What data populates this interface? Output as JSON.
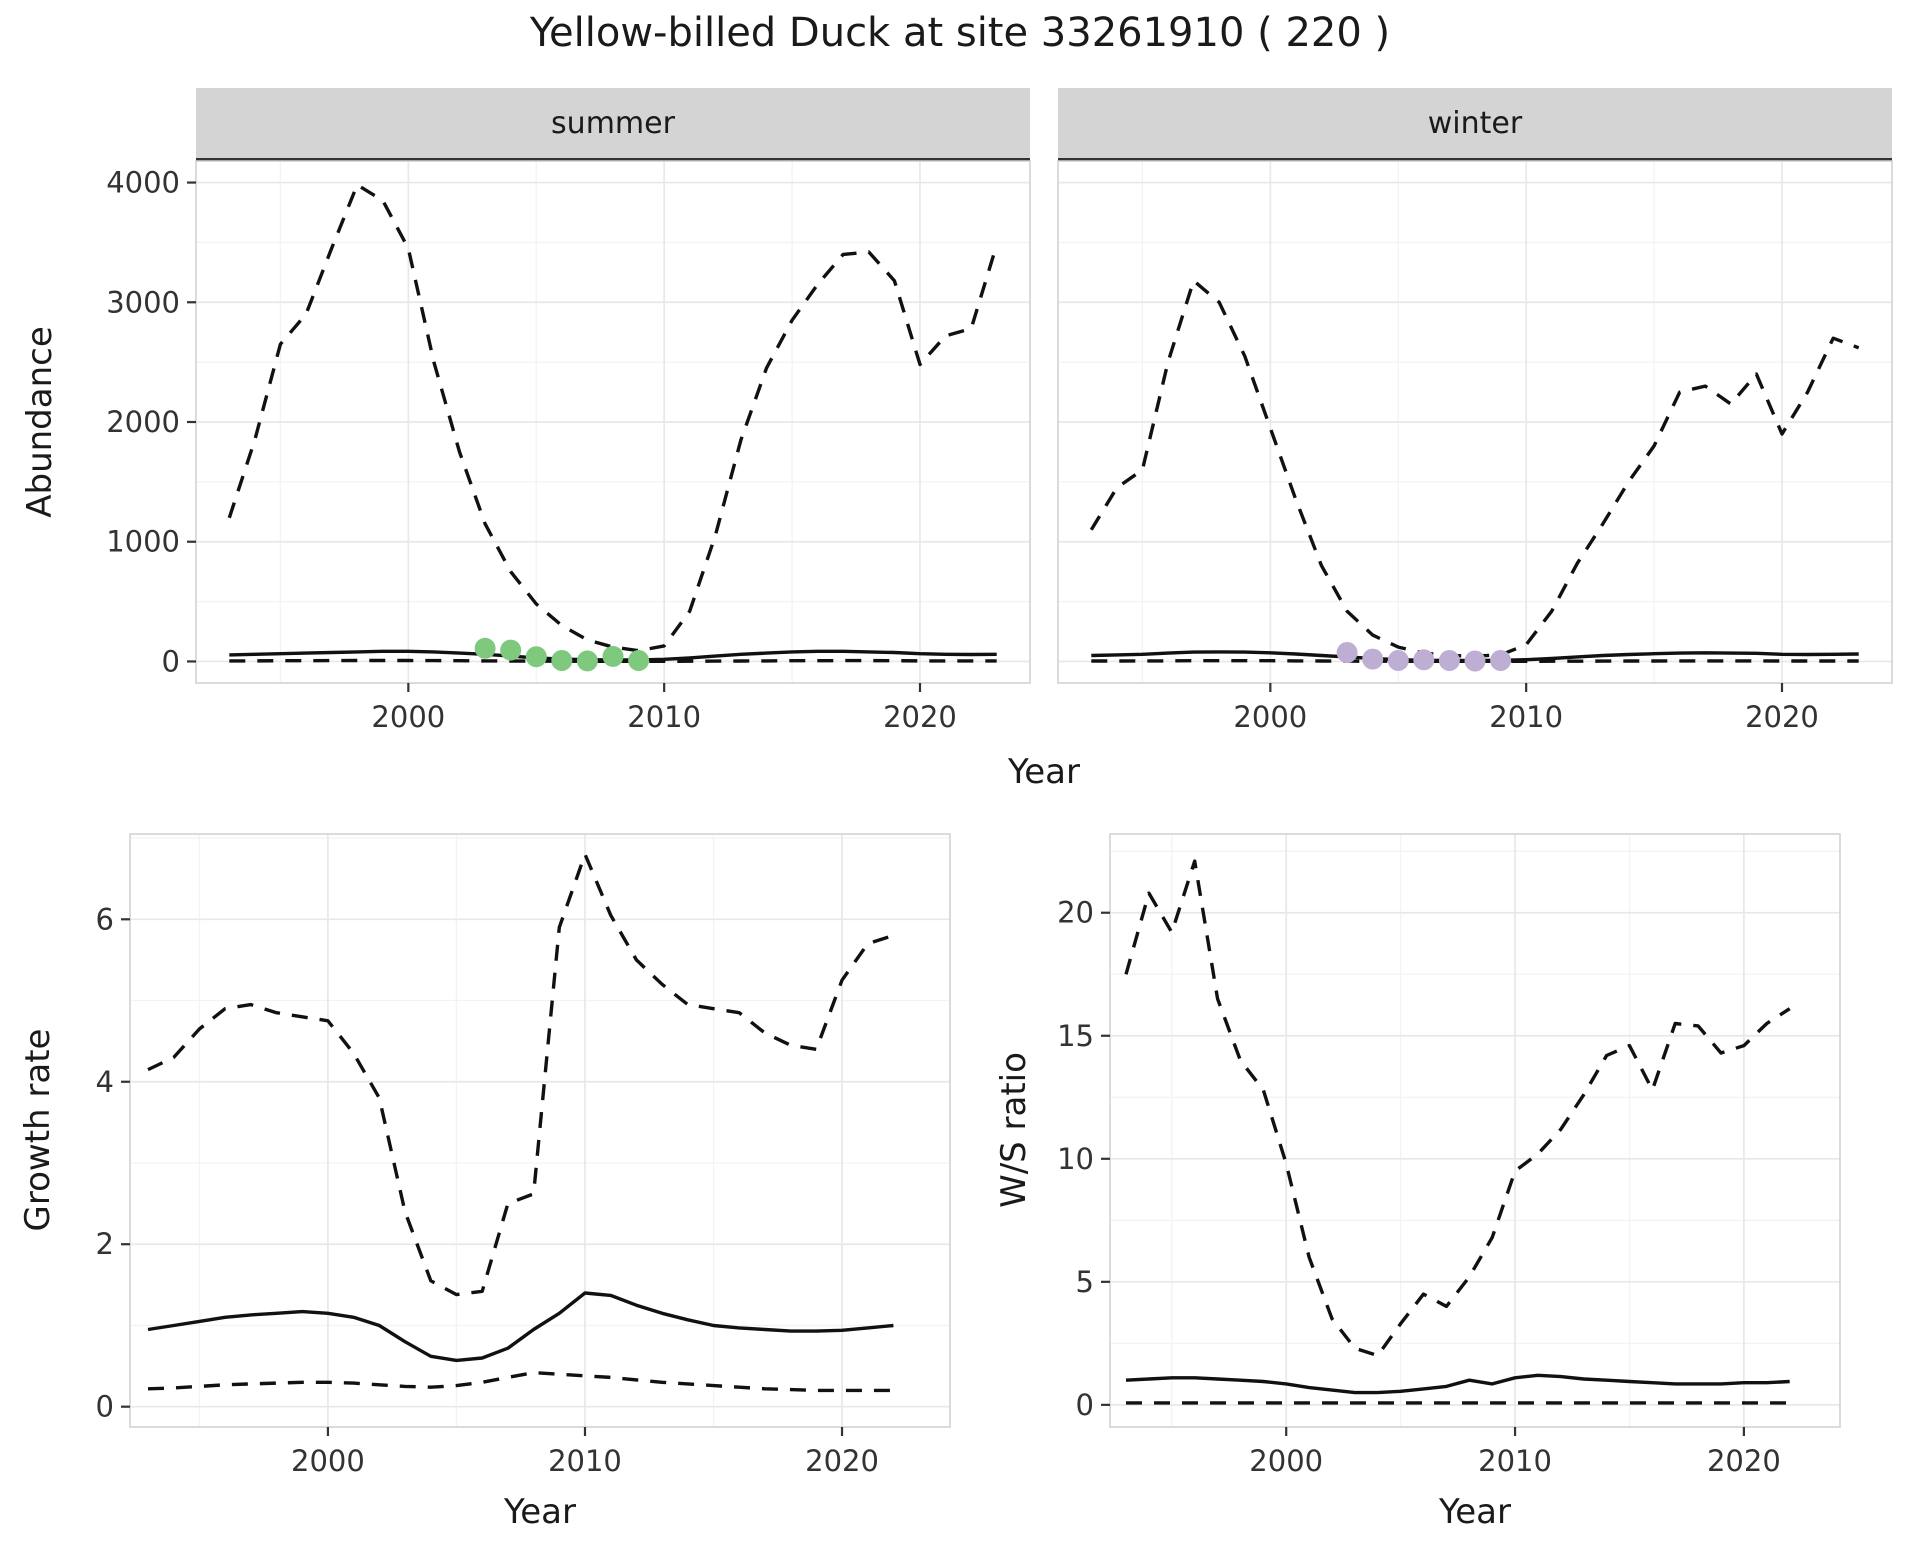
{
  "title": "Yellow-billed Duck at site 33261910 ( 220 )",
  "facets": {
    "summer": "summer",
    "winter": "winter"
  },
  "axis_labels": {
    "abundance": "Abundance",
    "year": "Year",
    "growth_rate": "Growth rate",
    "ws_ratio": "W/S ratio"
  },
  "colors": {
    "summer_points": "#7FC97F",
    "winter_points": "#BEAED4",
    "line": "#111111",
    "grid_major": "#E8E8E8",
    "grid_minor": "#F3F3F3",
    "strip_bg": "#D4D4D4",
    "strip_border": "#333333",
    "panel_border": "#CFCFCF",
    "tick_text": "#333333"
  },
  "chart_data": [
    {
      "id": "abundance_summer",
      "type": "line",
      "facet": "summer",
      "xlabel": "Year",
      "ylabel": "Abundance",
      "xlim": [
        1991.7,
        2024.3
      ],
      "ylim": [
        -180,
        4180
      ],
      "xticks": [
        2000,
        2010,
        2020
      ],
      "yticks": [
        0,
        1000,
        2000,
        3000,
        4000
      ],
      "grid": true,
      "x": [
        1993,
        1994,
        1995,
        1996,
        1997,
        1998,
        1999,
        2000,
        2001,
        2002,
        2003,
        2004,
        2005,
        2006,
        2007,
        2008,
        2009,
        2010,
        2011,
        2012,
        2013,
        2014,
        2015,
        2016,
        2017,
        2018,
        2019,
        2020,
        2021,
        2022,
        2023
      ],
      "series": [
        {
          "name": "upper_95ci",
          "style": "dashed",
          "values": [
            1200,
            1850,
            2650,
            2900,
            3450,
            3980,
            3850,
            3450,
            2500,
            1750,
            1150,
            750,
            480,
            300,
            180,
            120,
            90,
            130,
            420,
            1050,
            1850,
            2450,
            2850,
            3150,
            3400,
            3420,
            3180,
            2480,
            2720,
            2780,
            3480
          ]
        },
        {
          "name": "estimate",
          "style": "solid",
          "values": [
            55,
            60,
            65,
            70,
            75,
            80,
            85,
            85,
            80,
            70,
            60,
            45,
            30,
            20,
            15,
            12,
            12,
            18,
            30,
            45,
            60,
            70,
            80,
            85,
            85,
            80,
            75,
            65,
            60,
            58,
            60
          ]
        },
        {
          "name": "lower_95ci",
          "style": "dashed",
          "values": [
            5,
            5,
            6,
            6,
            7,
            8,
            8,
            8,
            7,
            6,
            5,
            4,
            3,
            2,
            1,
            1,
            1,
            1,
            2,
            3,
            4,
            5,
            6,
            6,
            7,
            7,
            6,
            5,
            5,
            5,
            5
          ]
        }
      ],
      "points": {
        "name": "observed-counts-summer",
        "color": "#7FC97F",
        "x": [
          2003,
          2004,
          2005,
          2006,
          2007,
          2008,
          2009
        ],
        "y": [
          110,
          95,
          40,
          8,
          5,
          42,
          8
        ]
      }
    },
    {
      "id": "abundance_winter",
      "type": "line",
      "facet": "winter",
      "xlabel": "Year",
      "ylabel": "Abundance",
      "xlim": [
        1991.7,
        2024.3
      ],
      "ylim": [
        -180,
        4180
      ],
      "xticks": [
        2000,
        2010,
        2020
      ],
      "yticks": [
        0,
        1000,
        2000,
        3000,
        4000
      ],
      "grid": true,
      "x": [
        1993,
        1994,
        1995,
        1996,
        1997,
        1998,
        1999,
        2000,
        2001,
        2002,
        2003,
        2004,
        2005,
        2006,
        2007,
        2008,
        2009,
        2010,
        2011,
        2012,
        2013,
        2014,
        2015,
        2016,
        2017,
        2018,
        2019,
        2020,
        2021,
        2022,
        2023
      ],
      "series": [
        {
          "name": "upper_95ci",
          "style": "dashed",
          "values": [
            1100,
            1450,
            1600,
            2500,
            3180,
            3000,
            2550,
            1950,
            1350,
            800,
            420,
            220,
            120,
            70,
            50,
            45,
            55,
            140,
            420,
            820,
            1150,
            1500,
            1800,
            2250,
            2300,
            2150,
            2400,
            1900,
            2250,
            2700,
            2620
          ]
        },
        {
          "name": "estimate",
          "style": "solid",
          "values": [
            50,
            55,
            60,
            70,
            78,
            80,
            78,
            72,
            62,
            50,
            38,
            25,
            15,
            10,
            8,
            8,
            10,
            15,
            25,
            38,
            50,
            58,
            65,
            70,
            72,
            70,
            68,
            60,
            58,
            60,
            62
          ]
        },
        {
          "name": "lower_95ci",
          "style": "dashed",
          "values": [
            4,
            4,
            5,
            5,
            6,
            6,
            6,
            6,
            5,
            4,
            3,
            2,
            2,
            1,
            1,
            1,
            1,
            1,
            2,
            2,
            3,
            4,
            4,
            5,
            5,
            5,
            5,
            4,
            4,
            4,
            4
          ]
        }
      ],
      "points": {
        "name": "observed-counts-winter",
        "color": "#BEAED4",
        "x": [
          2003,
          2004,
          2005,
          2006,
          2007,
          2008,
          2009
        ],
        "y": [
          75,
          20,
          8,
          14,
          8,
          4,
          8
        ]
      }
    },
    {
      "id": "growth_rate",
      "type": "line",
      "xlabel": "Year",
      "ylabel": "Growth rate",
      "xlim": [
        1992.3,
        2024.2
      ],
      "ylim": [
        -0.25,
        7.05
      ],
      "xticks": [
        2000,
        2010,
        2020
      ],
      "yticks": [
        0,
        2,
        4,
        6
      ],
      "grid": true,
      "x": [
        1993,
        1994,
        1995,
        1996,
        1997,
        1998,
        1999,
        2000,
        2001,
        2002,
        2003,
        2004,
        2005,
        2006,
        2007,
        2008,
        2009,
        2010,
        2011,
        2012,
        2013,
        2014,
        2015,
        2016,
        2017,
        2018,
        2019,
        2020,
        2021,
        2022
      ],
      "series": [
        {
          "name": "upper_95ci",
          "style": "dashed",
          "values": [
            4.15,
            4.3,
            4.65,
            4.9,
            4.95,
            4.85,
            4.8,
            4.75,
            4.35,
            3.8,
            2.4,
            1.55,
            1.38,
            1.42,
            2.5,
            2.62,
            5.9,
            6.8,
            6.05,
            5.5,
            5.2,
            4.95,
            4.9,
            4.85,
            4.6,
            4.45,
            4.4,
            5.25,
            5.7,
            5.8
          ]
        },
        {
          "name": "estimate",
          "style": "solid",
          "values": [
            0.95,
            1.0,
            1.05,
            1.1,
            1.13,
            1.15,
            1.17,
            1.15,
            1.1,
            1.0,
            0.8,
            0.62,
            0.57,
            0.6,
            0.72,
            0.95,
            1.15,
            1.4,
            1.37,
            1.25,
            1.15,
            1.07,
            1.0,
            0.97,
            0.95,
            0.93,
            0.93,
            0.94,
            0.97,
            1.0
          ]
        },
        {
          "name": "lower_95ci",
          "style": "dashed",
          "values": [
            0.22,
            0.23,
            0.25,
            0.27,
            0.28,
            0.29,
            0.3,
            0.3,
            0.29,
            0.27,
            0.25,
            0.24,
            0.26,
            0.3,
            0.36,
            0.42,
            0.4,
            0.38,
            0.36,
            0.33,
            0.3,
            0.28,
            0.26,
            0.24,
            0.22,
            0.21,
            0.2,
            0.2,
            0.2,
            0.2
          ]
        }
      ]
    },
    {
      "id": "ws_ratio",
      "type": "line",
      "xlabel": "Year",
      "ylabel": "W/S ratio",
      "xlim": [
        1992.3,
        2024.2
      ],
      "ylim": [
        -0.9,
        23.2
      ],
      "xticks": [
        2000,
        2010,
        2020
      ],
      "yticks": [
        0,
        5,
        10,
        15,
        20
      ],
      "grid": true,
      "x": [
        1993,
        1994,
        1995,
        1996,
        1997,
        1998,
        1999,
        2000,
        2001,
        2002,
        2003,
        2004,
        2005,
        2006,
        2007,
        2008,
        2009,
        2010,
        2011,
        2012,
        2013,
        2014,
        2015,
        2016,
        2017,
        2018,
        2019,
        2020,
        2021,
        2022
      ],
      "series": [
        {
          "name": "upper_95ci",
          "style": "dashed",
          "values": [
            17.5,
            20.8,
            19.2,
            22.1,
            16.5,
            14.0,
            12.8,
            9.8,
            6.0,
            3.5,
            2.3,
            2.0,
            3.3,
            4.5,
            4.0,
            5.2,
            6.8,
            9.5,
            10.2,
            11.2,
            12.6,
            14.2,
            14.6,
            12.8,
            15.5,
            15.4,
            14.3,
            14.6,
            15.5,
            16.1
          ]
        },
        {
          "name": "estimate",
          "style": "solid",
          "values": [
            1.0,
            1.05,
            1.1,
            1.1,
            1.05,
            1.0,
            0.95,
            0.85,
            0.7,
            0.6,
            0.5,
            0.5,
            0.55,
            0.65,
            0.75,
            1.0,
            0.85,
            1.1,
            1.2,
            1.15,
            1.05,
            1.0,
            0.95,
            0.9,
            0.85,
            0.85,
            0.85,
            0.9,
            0.9,
            0.95
          ]
        },
        {
          "name": "lower_95ci",
          "style": "dashed",
          "values": [
            0.08,
            0.08,
            0.08,
            0.08,
            0.08,
            0.08,
            0.08,
            0.08,
            0.08,
            0.08,
            0.08,
            0.08,
            0.08,
            0.08,
            0.08,
            0.08,
            0.08,
            0.08,
            0.08,
            0.08,
            0.08,
            0.08,
            0.08,
            0.08,
            0.08,
            0.08,
            0.08,
            0.08,
            0.08,
            0.08
          ]
        }
      ]
    }
  ]
}
